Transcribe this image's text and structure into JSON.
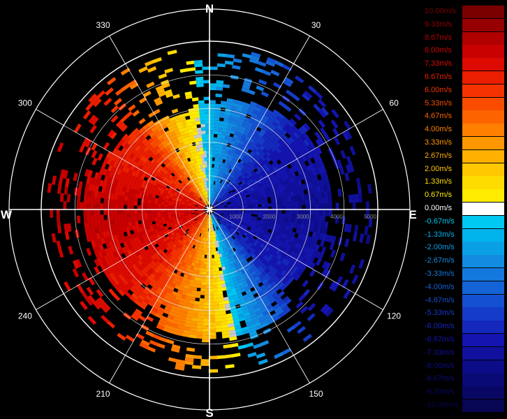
{
  "chart_data": {
    "type": "heatmap",
    "subtype": "polar-ppi-radial-velocity",
    "compass": {
      "north": "N",
      "east": "E",
      "south": "S",
      "west": "W"
    },
    "azimuth_labels": [
      "30",
      "60",
      "120",
      "150",
      "210",
      "240",
      "300",
      "330"
    ],
    "range_labels": [
      "1000",
      "2000",
      "3000",
      "4000",
      "5000"
    ],
    "range_max": 5000,
    "colorbar": {
      "labels": [
        "10.00m/s",
        "9.33m/s",
        "8.67m/s",
        "8.00m/s",
        "7.33m/s",
        "6.67m/s",
        "6.00m/s",
        "5.33m/s",
        "4.67m/s",
        "4.00m/s",
        "3.33m/s",
        "2.67m/s",
        "2.00m/s",
        "1.33m/s",
        "0.67m/s",
        "0.00m/s",
        "-0.67m/s",
        "-1.33m/s",
        "-2.00m/s",
        "-2.67m/s",
        "-3.33m/s",
        "-4.00m/s",
        "-4.67m/s",
        "-5.33m/s",
        "-6.00m/s",
        "-6.67m/s",
        "-7.33m/s",
        "-8.00m/s",
        "-8.67m/s",
        "-9.33m/s",
        "-10.00m/s"
      ],
      "values": [
        10.0,
        9.33,
        8.67,
        8.0,
        7.33,
        6.67,
        6.0,
        5.33,
        4.67,
        4.0,
        3.33,
        2.67,
        2.0,
        1.33,
        0.67,
        0.0,
        -0.67,
        -1.33,
        -2.0,
        -2.67,
        -3.33,
        -4.0,
        -4.67,
        -5.33,
        -6.0,
        -6.67,
        -7.33,
        -8.0,
        -8.67,
        -9.33,
        -10.0
      ],
      "colors": [
        "#7a0000",
        "#960000",
        "#b00000",
        "#c80000",
        "#dc0a00",
        "#ea1e00",
        "#f43300",
        "#fa4c00",
        "#fd6400",
        "#ff7f00",
        "#ff9800",
        "#ffb000",
        "#ffc800",
        "#ffdc00",
        "#ffec00",
        "#ffffff",
        "#00c8f0",
        "#00b4eb",
        "#0aa0e6",
        "#128ce1",
        "#1478dc",
        "#1464d7",
        "#1450d2",
        "#143cc8",
        "#1428bc",
        "#1414b0",
        "#10109c",
        "#0c0c88",
        "#0a0a76",
        "#080864",
        "#060652"
      ]
    },
    "velocity_profile": {
      "azimuth_deg": [
        0,
        45,
        90,
        135,
        158,
        180,
        225,
        270,
        315,
        338
      ],
      "velocity_ms": [
        -1.0,
        -6.0,
        -7.3,
        -6.0,
        -2.0,
        2.0,
        6.7,
        7.8,
        6.0,
        2.0
      ]
    }
  }
}
